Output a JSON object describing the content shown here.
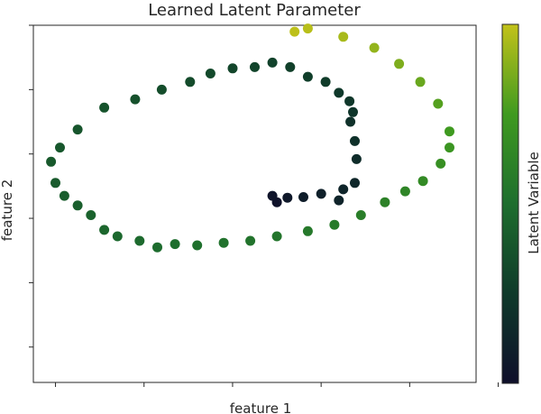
{
  "chart_data": {
    "type": "scatter",
    "title": "Learned Latent Parameter",
    "xlabel": "feature 1",
    "ylabel": "feature 2",
    "colorbar_label": "Latent Variable",
    "colormap": [
      "#0f0f2a",
      "#0f3a2a",
      "#1e6e2e",
      "#3f9a20",
      "#c2c21a"
    ],
    "xticks": [
      -1,
      0,
      1,
      2,
      3,
      4
    ],
    "yticks": [
      -1,
      0,
      1,
      2,
      3,
      4,
      5
    ],
    "tick_labels_shown": false,
    "xlim": [
      -1.25,
      3.75
    ],
    "ylim": [
      -1.55,
      4.0
    ],
    "clim": [
      0,
      1
    ],
    "grid": false,
    "points": [
      {
        "x": 1.5,
        "y": 1.25,
        "c": 0.02
      },
      {
        "x": 1.45,
        "y": 1.35,
        "c": 0.03
      },
      {
        "x": 1.62,
        "y": 1.32,
        "c": 0.05
      },
      {
        "x": 1.8,
        "y": 1.33,
        "c": 0.08
      },
      {
        "x": 2.0,
        "y": 1.38,
        "c": 0.1
      },
      {
        "x": 2.2,
        "y": 1.28,
        "c": 0.12
      },
      {
        "x": 2.25,
        "y": 1.45,
        "c": 0.13
      },
      {
        "x": 2.38,
        "y": 1.55,
        "c": 0.14
      },
      {
        "x": 2.4,
        "y": 1.92,
        "c": 0.17
      },
      {
        "x": 2.38,
        "y": 2.2,
        "c": 0.19
      },
      {
        "x": 2.33,
        "y": 2.5,
        "c": 0.2
      },
      {
        "x": 2.36,
        "y": 2.65,
        "c": 0.22
      },
      {
        "x": 2.32,
        "y": 2.82,
        "c": 0.23
      },
      {
        "x": 2.2,
        "y": 2.95,
        "c": 0.24
      },
      {
        "x": 2.05,
        "y": 3.12,
        "c": 0.26
      },
      {
        "x": 1.85,
        "y": 3.2,
        "c": 0.27
      },
      {
        "x": 1.65,
        "y": 3.35,
        "c": 0.28
      },
      {
        "x": 1.45,
        "y": 3.42,
        "c": 0.29
      },
      {
        "x": 1.25,
        "y": 3.35,
        "c": 0.3
      },
      {
        "x": 1.0,
        "y": 3.33,
        "c": 0.31
      },
      {
        "x": 0.75,
        "y": 3.25,
        "c": 0.32
      },
      {
        "x": 0.52,
        "y": 3.12,
        "c": 0.33
      },
      {
        "x": 0.2,
        "y": 3.0,
        "c": 0.34
      },
      {
        "x": -0.1,
        "y": 2.85,
        "c": 0.36
      },
      {
        "x": -0.45,
        "y": 2.72,
        "c": 0.37
      },
      {
        "x": -0.75,
        "y": 2.38,
        "c": 0.38
      },
      {
        "x": -0.95,
        "y": 2.1,
        "c": 0.39
      },
      {
        "x": -1.05,
        "y": 1.88,
        "c": 0.4
      },
      {
        "x": -1.0,
        "y": 1.55,
        "c": 0.41
      },
      {
        "x": -0.9,
        "y": 1.35,
        "c": 0.42
      },
      {
        "x": -0.75,
        "y": 1.2,
        "c": 0.43
      },
      {
        "x": -0.6,
        "y": 1.05,
        "c": 0.44
      },
      {
        "x": -0.45,
        "y": 0.82,
        "c": 0.46
      },
      {
        "x": -0.3,
        "y": 0.72,
        "c": 0.47
      },
      {
        "x": -0.05,
        "y": 0.65,
        "c": 0.48
      },
      {
        "x": 0.15,
        "y": 0.55,
        "c": 0.49
      },
      {
        "x": 0.35,
        "y": 0.6,
        "c": 0.5
      },
      {
        "x": 0.6,
        "y": 0.58,
        "c": 0.51
      },
      {
        "x": 0.9,
        "y": 0.62,
        "c": 0.52
      },
      {
        "x": 1.2,
        "y": 0.65,
        "c": 0.53
      },
      {
        "x": 1.5,
        "y": 0.72,
        "c": 0.54
      },
      {
        "x": 1.85,
        "y": 0.8,
        "c": 0.56
      },
      {
        "x": 2.15,
        "y": 0.9,
        "c": 0.57
      },
      {
        "x": 2.45,
        "y": 1.05,
        "c": 0.59
      },
      {
        "x": 2.72,
        "y": 1.25,
        "c": 0.61
      },
      {
        "x": 2.95,
        "y": 1.42,
        "c": 0.63
      },
      {
        "x": 3.15,
        "y": 1.58,
        "c": 0.66
      },
      {
        "x": 3.35,
        "y": 1.85,
        "c": 0.69
      },
      {
        "x": 3.45,
        "y": 2.1,
        "c": 0.72
      },
      {
        "x": 3.45,
        "y": 2.35,
        "c": 0.75
      },
      {
        "x": 3.32,
        "y": 2.78,
        "c": 0.79
      },
      {
        "x": 3.12,
        "y": 3.12,
        "c": 0.83
      },
      {
        "x": 2.88,
        "y": 3.4,
        "c": 0.87
      },
      {
        "x": 2.6,
        "y": 3.65,
        "c": 0.91
      },
      {
        "x": 2.25,
        "y": 3.82,
        "c": 0.95
      },
      {
        "x": 1.85,
        "y": 3.95,
        "c": 0.98
      },
      {
        "x": 1.7,
        "y": 3.9,
        "c": 0.99
      }
    ]
  }
}
